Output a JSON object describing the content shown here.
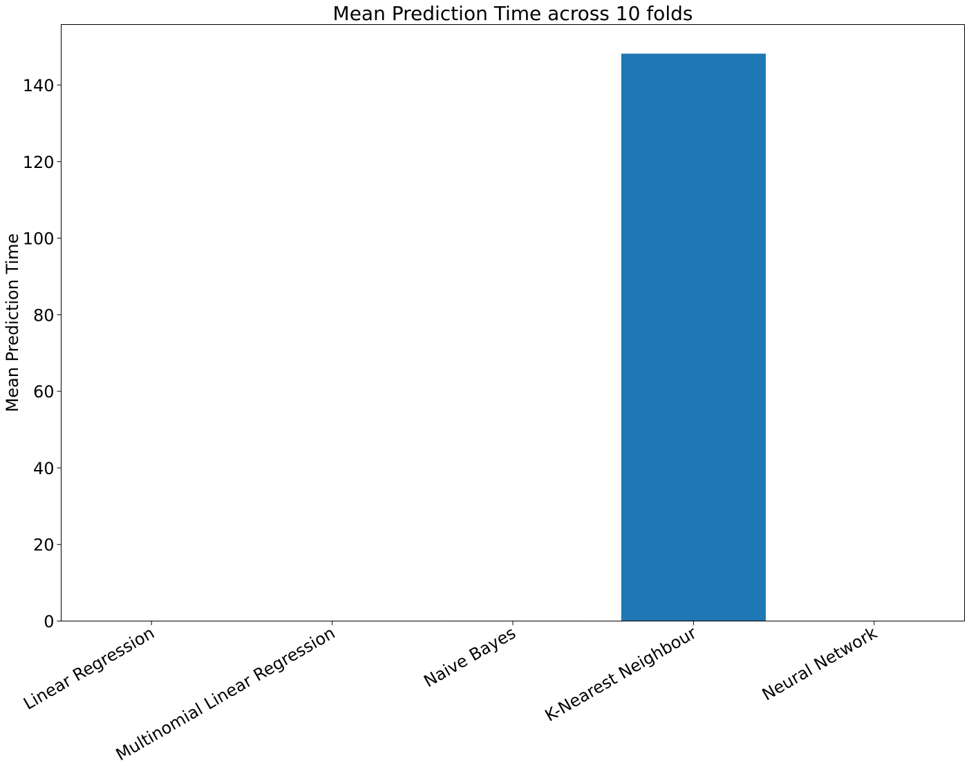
{
  "chart_data": {
    "type": "bar",
    "title": "Mean Prediction Time across 10 folds",
    "xlabel": "",
    "ylabel": "Mean Prediction Time",
    "categories": [
      "Linear Regression",
      "Multinomial Linear Regression",
      "Naive Bayes",
      "K-Nearest Neighbour",
      "Neural Network"
    ],
    "values": [
      0.02,
      0.03,
      0.1,
      148.2,
      0.05
    ],
    "ylim": [
      0,
      155.8
    ],
    "yticks": [
      0,
      20,
      40,
      60,
      80,
      100,
      120,
      140
    ],
    "tick_label_rotation_deg": -30,
    "grid": false,
    "legend": "none",
    "bar_color": "#1f77b4"
  }
}
